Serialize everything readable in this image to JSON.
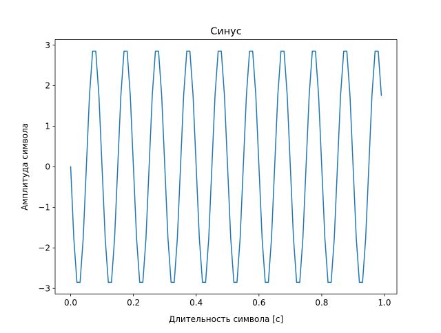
{
  "chart_data": {
    "type": "line",
    "title": "Синус",
    "xlabel": "Длительность символа [с]",
    "ylabel": "Амплитуда символа",
    "xlim": [
      -0.0495,
      1.0395
    ],
    "ylim": [
      -3.135,
      3.135
    ],
    "xticks": [
      0.0,
      0.2,
      0.4,
      0.6,
      0.8,
      1.0
    ],
    "xtick_labels": [
      "0.0",
      "0.2",
      "0.4",
      "0.6",
      "0.8",
      "1.0"
    ],
    "yticks": [
      -3,
      -2,
      -1,
      0,
      1,
      2,
      3
    ],
    "ytick_labels": [
      "−3",
      "−2",
      "−1",
      "0",
      "1",
      "2",
      "3"
    ],
    "grid": false,
    "legend": false,
    "line_color": "#1f77b4",
    "series": [
      {
        "x": [
          0.0,
          0.01,
          0.02,
          0.03,
          0.04,
          0.05,
          0.06,
          0.07,
          0.08,
          0.09,
          0.1,
          0.11,
          0.12,
          0.13,
          0.14,
          0.15,
          0.16,
          0.17,
          0.18,
          0.19,
          0.2,
          0.21,
          0.22,
          0.23,
          0.24,
          0.25,
          0.26,
          0.27,
          0.28,
          0.29,
          0.3,
          0.31,
          0.32,
          0.33,
          0.34,
          0.35,
          0.36,
          0.37,
          0.38,
          0.39,
          0.4,
          0.41,
          0.42,
          0.43,
          0.44,
          0.45,
          0.46,
          0.47,
          0.48,
          0.49,
          0.5,
          0.51,
          0.52,
          0.53,
          0.54,
          0.55,
          0.56,
          0.57,
          0.58,
          0.59,
          0.6,
          0.61,
          0.62,
          0.63,
          0.64,
          0.65,
          0.66,
          0.67,
          0.68,
          0.69,
          0.7,
          0.71,
          0.72,
          0.73,
          0.74,
          0.75,
          0.76,
          0.77,
          0.78,
          0.79,
          0.8,
          0.81,
          0.82,
          0.83,
          0.84,
          0.85,
          0.86,
          0.87,
          0.88,
          0.89,
          0.9,
          0.91,
          0.92,
          0.93,
          0.94,
          0.95,
          0.96,
          0.97,
          0.98,
          0.99
        ],
        "y": [
          0.0,
          -1.76,
          -2.85,
          -2.85,
          -1.76,
          0.0,
          1.76,
          2.85,
          2.85,
          1.76,
          0.0,
          -1.76,
          -2.85,
          -2.85,
          -1.76,
          0.0,
          1.76,
          2.85,
          2.85,
          1.76,
          0.0,
          -1.76,
          -2.85,
          -2.85,
          -1.76,
          0.0,
          1.76,
          2.85,
          2.85,
          1.76,
          0.0,
          -1.76,
          -2.85,
          -2.85,
          -1.76,
          0.0,
          1.76,
          2.85,
          2.85,
          1.76,
          0.0,
          -1.76,
          -2.85,
          -2.85,
          -1.76,
          0.0,
          1.76,
          2.85,
          2.85,
          1.76,
          0.0,
          -1.76,
          -2.85,
          -2.85,
          -1.76,
          0.0,
          1.76,
          2.85,
          2.85,
          1.76,
          0.0,
          -1.76,
          -2.85,
          -2.85,
          -1.76,
          0.0,
          1.76,
          2.85,
          2.85,
          1.76,
          0.0,
          -1.76,
          -2.85,
          -2.85,
          -1.76,
          0.0,
          1.76,
          2.85,
          2.85,
          1.76,
          0.0,
          -1.76,
          -2.85,
          -2.85,
          -1.76,
          0.0,
          1.76,
          2.85,
          2.85,
          1.76,
          0.0,
          -1.76,
          -2.85,
          -2.85,
          -1.76,
          0.0,
          1.76,
          2.85,
          2.85,
          1.76
        ]
      }
    ]
  }
}
